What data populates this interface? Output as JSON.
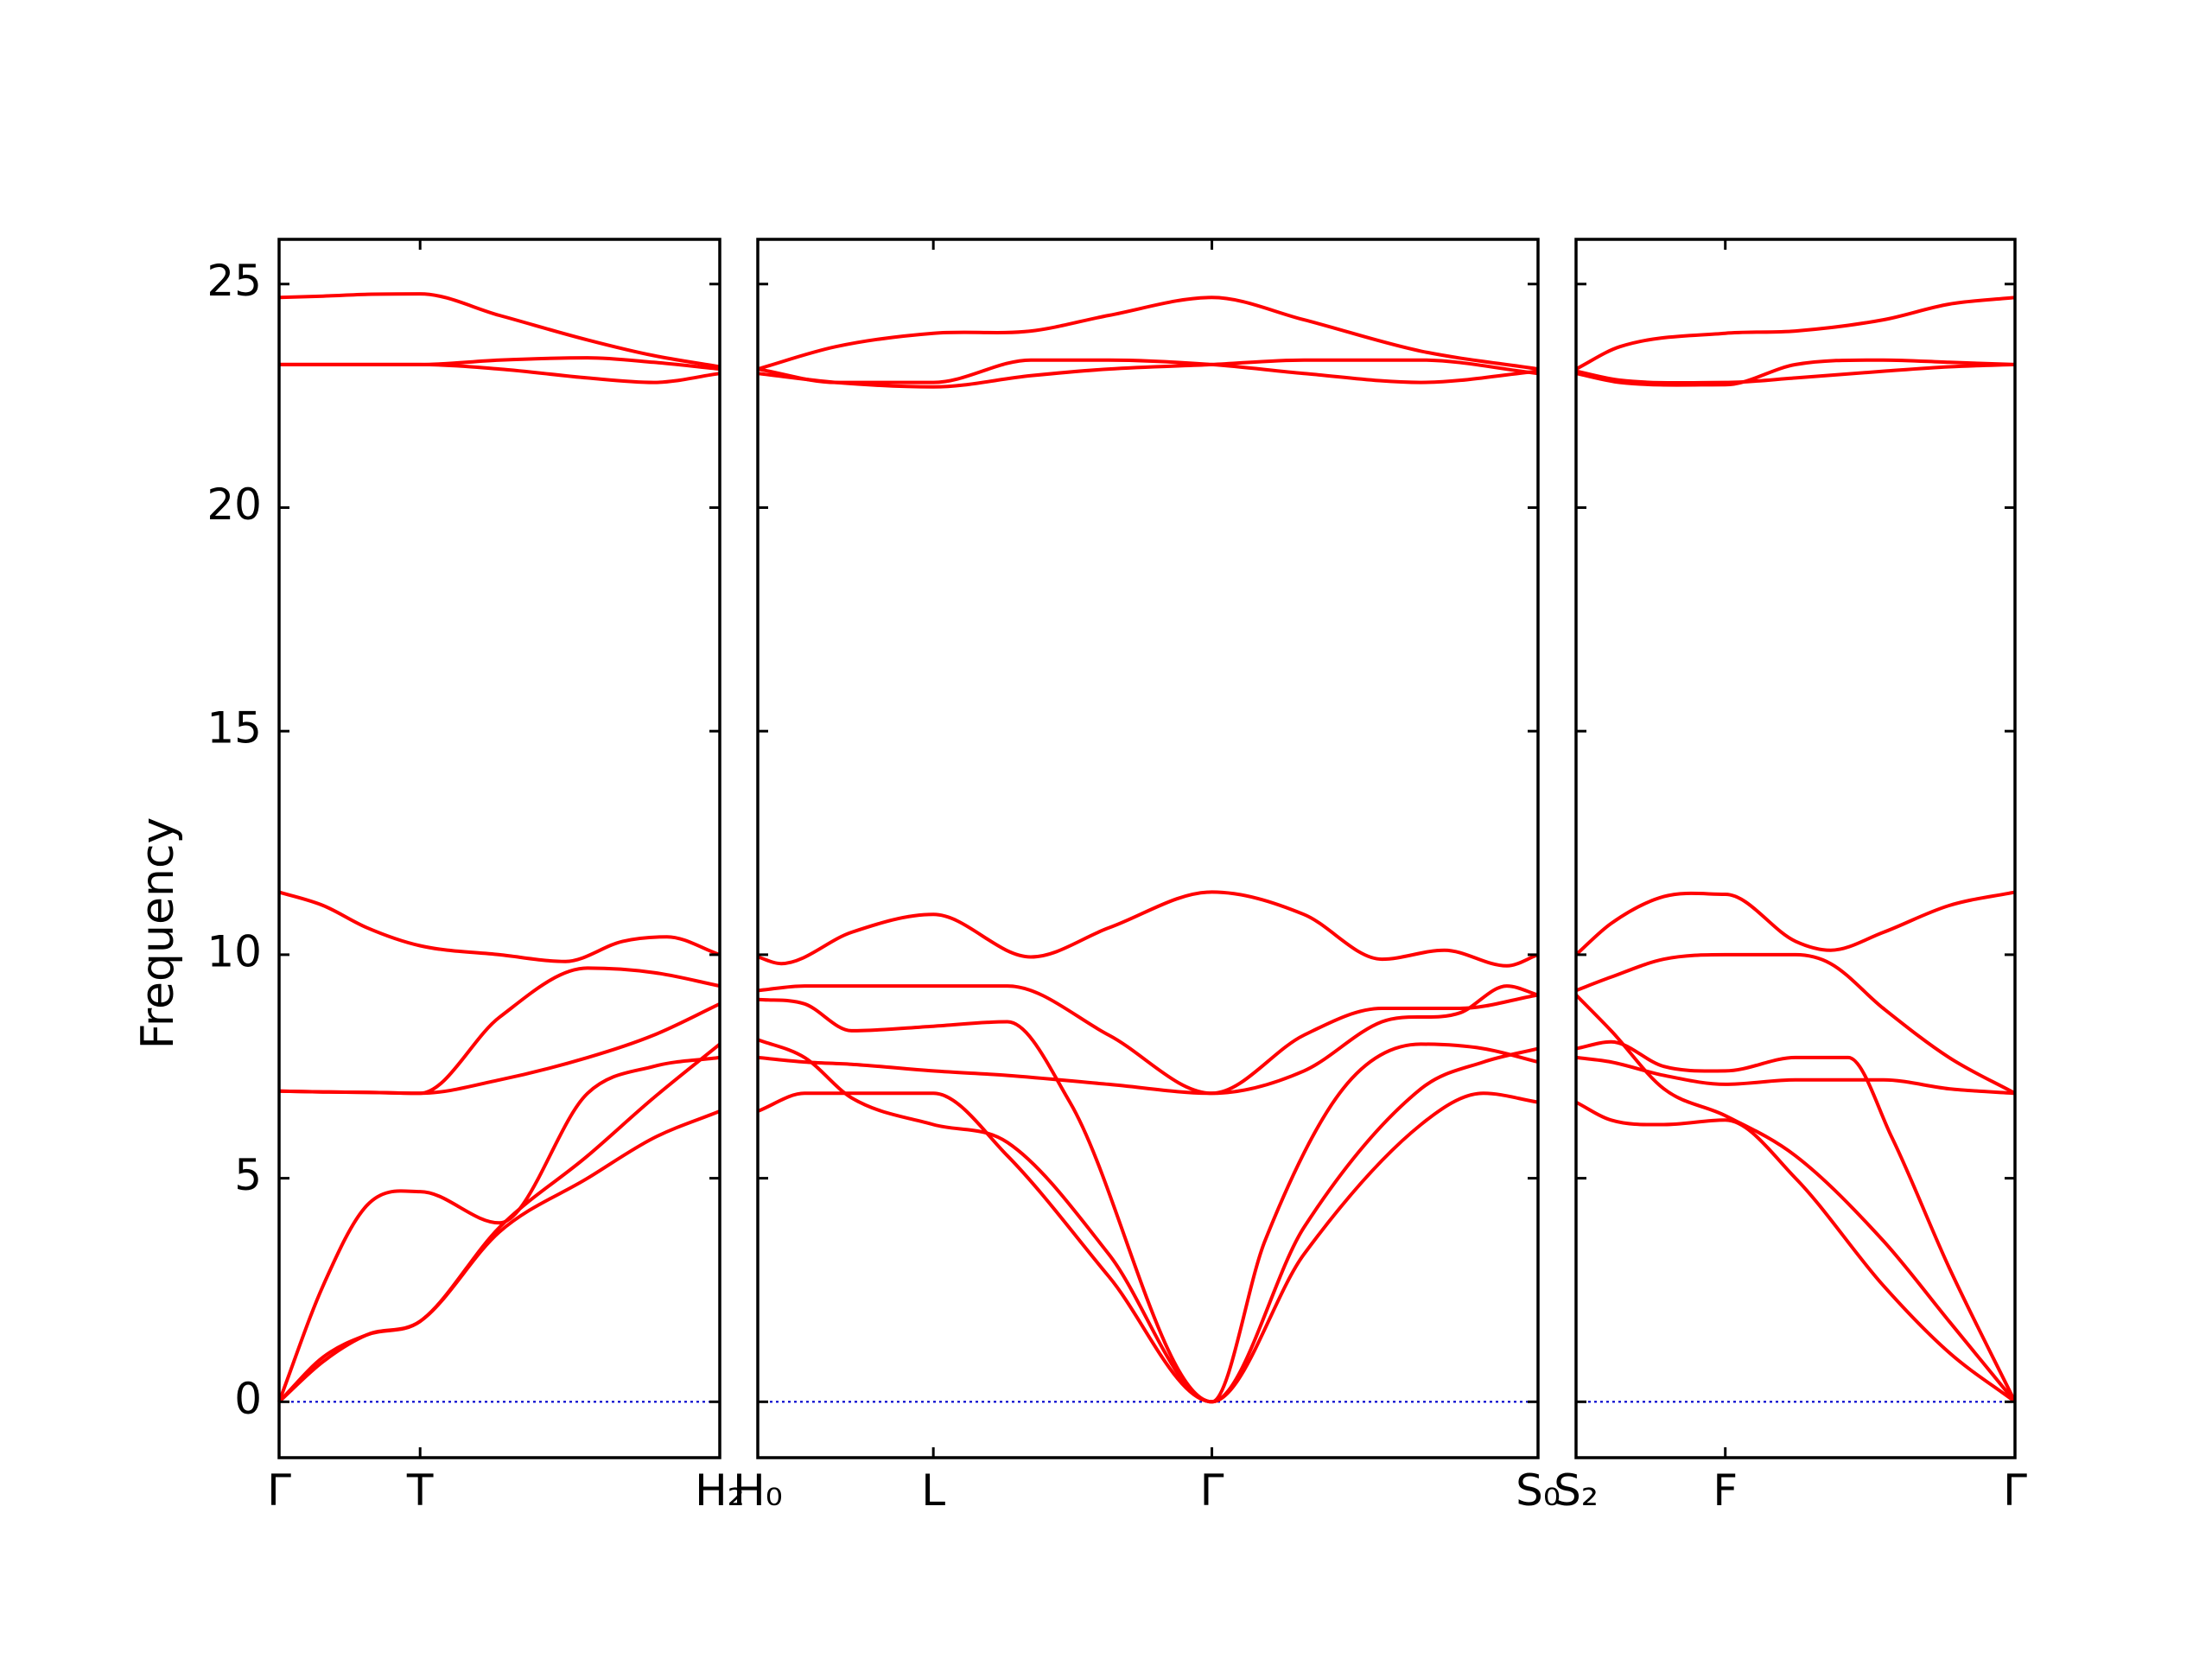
{
  "chart_data": {
    "type": "line",
    "title": "",
    "xlabel": "",
    "ylabel": "Frequency",
    "ylim": [
      -1.25,
      26
    ],
    "yticks": [
      0,
      5,
      10,
      15,
      20,
      25
    ],
    "grid": false,
    "colors": {
      "bands": "#ff0000",
      "zero_line": "#0000cc",
      "axes": "#000000"
    },
    "panels": [
      {
        "x_range": [
          0,
          1
        ],
        "ticks": [
          {
            "x": 0,
            "label": "Γ"
          },
          {
            "x": 0.32,
            "label": "T"
          },
          {
            "x": 1,
            "label": "H₂"
          }
        ],
        "bands": [
          {
            "x": [
              0,
              0.1,
              0.2,
              0.32,
              0.5,
              0.7,
              0.85,
              1
            ],
            "y": [
              0,
              1.0,
              1.5,
              1.8,
              3.9,
              5.5,
              6.8,
              8.0
            ]
          },
          {
            "x": [
              0,
              0.1,
              0.2,
              0.32,
              0.5,
              0.7,
              0.85,
              1
            ],
            "y": [
              0,
              2.6,
              4.4,
              4.7,
              4.0,
              6.9,
              7.5,
              7.7
            ]
          },
          {
            "x": [
              0,
              0.1,
              0.2,
              0.32,
              0.5,
              0.7,
              0.85,
              1
            ],
            "y": [
              0,
              0.9,
              1.5,
              1.8,
              3.8,
              5.0,
              5.9,
              6.5
            ]
          },
          {
            "x": [
              0,
              0.1,
              0.2,
              0.32,
              0.5,
              0.7,
              0.85,
              1
            ],
            "y": [
              6.95,
              6.93,
              6.92,
              6.9,
              7.2,
              7.7,
              8.2,
              8.9
            ]
          },
          {
            "x": [
              0,
              0.1,
              0.2,
              0.32,
              0.5,
              0.7,
              0.85,
              1
            ],
            "y": [
              6.95,
              6.93,
              6.92,
              6.9,
              8.6,
              9.7,
              9.6,
              9.3
            ]
          },
          {
            "x": [
              0,
              0.1,
              0.2,
              0.32,
              0.5,
              0.65,
              0.78,
              0.88,
              1
            ],
            "y": [
              11.4,
              11.1,
              10.6,
              10.2,
              10.0,
              9.85,
              10.3,
              10.4,
              10.0
            ]
          },
          {
            "x": [
              0,
              0.1,
              0.2,
              0.32,
              0.5,
              0.7,
              0.85,
              1
            ],
            "y": [
              23.2,
              23.2,
              23.2,
              23.2,
              23.3,
              23.35,
              23.25,
              23.1
            ]
          },
          {
            "x": [
              0,
              0.1,
              0.2,
              0.32,
              0.5,
              0.7,
              0.85,
              1
            ],
            "y": [
              23.2,
              23.2,
              23.2,
              23.2,
              23.1,
              22.9,
              22.8,
              23.0
            ]
          },
          {
            "x": [
              0,
              0.1,
              0.2,
              0.32,
              0.5,
              0.7,
              0.85,
              1
            ],
            "y": [
              24.7,
              24.73,
              24.77,
              24.78,
              24.3,
              23.75,
              23.4,
              23.15
            ]
          }
        ]
      },
      {
        "x_range": [
          0,
          1
        ],
        "ticks": [
          {
            "x": 0,
            "label": "H₀"
          },
          {
            "x": 0.225,
            "label": "L"
          },
          {
            "x": 0.582,
            "label": "Γ"
          },
          {
            "x": 1,
            "label": "S₀"
          }
        ],
        "bands": [
          {
            "x": [
              0,
              0.06,
              0.12,
              0.225,
              0.32,
              0.45,
              0.582,
              0.7,
              0.85,
              0.93,
              1
            ],
            "y": [
              6.5,
              6.9,
              6.9,
              6.9,
              5.5,
              2.8,
              0,
              3.3,
              6.2,
              6.9,
              6.7
            ]
          },
          {
            "x": [
              0,
              0.06,
              0.12,
              0.225,
              0.32,
              0.45,
              0.582,
              0.7,
              0.85,
              0.93,
              1
            ],
            "y": [
              8.1,
              7.7,
              6.8,
              6.2,
              5.8,
              3.3,
              0,
              3.9,
              7.0,
              7.6,
              7.9
            ]
          },
          {
            "x": [
              0,
              0.06,
              0.12,
              0.225,
              0.32,
              0.4,
              0.582,
              0.65,
              0.75,
              0.85,
              0.93,
              1
            ],
            "y": [
              9.0,
              8.9,
              8.3,
              8.4,
              8.5,
              6.7,
              0,
              3.6,
              7.0,
              8.0,
              7.9,
              7.6
            ]
          },
          {
            "x": [
              0,
              0.06,
              0.12,
              0.225,
              0.32,
              0.45,
              0.582,
              0.7,
              0.8,
              0.9,
              0.96,
              1
            ],
            "y": [
              7.7,
              7.6,
              7.55,
              7.4,
              7.3,
              7.1,
              6.9,
              7.4,
              8.5,
              8.7,
              9.3,
              9.1
            ]
          },
          {
            "x": [
              0,
              0.06,
              0.12,
              0.225,
              0.32,
              0.45,
              0.582,
              0.7,
              0.8,
              0.9,
              1
            ],
            "y": [
              9.2,
              9.3,
              9.3,
              9.3,
              9.3,
              8.2,
              6.9,
              8.2,
              8.8,
              8.8,
              9.1
            ]
          },
          {
            "x": [
              0,
              0.03,
              0.12,
              0.225,
              0.35,
              0.45,
              0.582,
              0.7,
              0.8,
              0.88,
              0.96,
              1
            ],
            "y": [
              9.95,
              9.8,
              10.5,
              10.9,
              9.95,
              10.6,
              11.4,
              10.9,
              9.9,
              10.1,
              9.75,
              10.0
            ]
          },
          {
            "x": [
              0,
              0.1,
              0.225,
              0.35,
              0.45,
              0.582,
              0.7,
              0.85,
              1
            ],
            "y": [
              23.0,
              22.8,
              22.7,
              22.95,
              23.1,
              23.2,
              23.3,
              23.3,
              23.0
            ]
          },
          {
            "x": [
              0,
              0.1,
              0.225,
              0.35,
              0.45,
              0.582,
              0.7,
              0.85,
              1
            ],
            "y": [
              23.1,
              22.8,
              22.8,
              23.3,
              23.3,
              23.2,
              23.0,
              22.8,
              23.05
            ]
          },
          {
            "x": [
              0,
              0.1,
              0.225,
              0.35,
              0.45,
              0.582,
              0.7,
              0.85,
              1
            ],
            "y": [
              23.1,
              23.6,
              23.9,
              23.95,
              24.3,
              24.7,
              24.2,
              23.5,
              23.1
            ]
          }
        ]
      },
      {
        "x_range": [
          0,
          1
        ],
        "ticks": [
          {
            "x": 0,
            "label": "S₂"
          },
          {
            "x": 0.34,
            "label": "F"
          },
          {
            "x": 1,
            "label": "Γ"
          }
        ],
        "bands": [
          {
            "x": [
              0,
              0.08,
              0.2,
              0.34,
              0.5,
              0.7,
              0.85,
              1
            ],
            "y": [
              6.7,
              6.3,
              6.2,
              6.3,
              5.0,
              2.6,
              1.1,
              0
            ]
          },
          {
            "x": [
              0,
              0.08,
              0.2,
              0.34,
              0.5,
              0.7,
              0.85,
              1
            ],
            "y": [
              9.1,
              8.3,
              7.0,
              6.4,
              5.5,
              3.6,
              1.8,
              0
            ]
          },
          {
            "x": [
              0,
              0.08,
              0.2,
              0.34,
              0.5,
              0.62,
              0.72,
              0.85,
              1
            ],
            "y": [
              7.9,
              8.05,
              7.5,
              7.4,
              7.7,
              7.7,
              5.9,
              3.0,
              0
            ]
          },
          {
            "x": [
              0,
              0.08,
              0.2,
              0.34,
              0.5,
              0.7,
              0.85,
              1
            ],
            "y": [
              7.7,
              7.6,
              7.3,
              7.1,
              7.2,
              7.2,
              7.0,
              6.9
            ]
          },
          {
            "x": [
              0,
              0.08,
              0.2,
              0.34,
              0.5,
              0.58,
              0.7,
              0.85,
              1
            ],
            "y": [
              9.2,
              9.5,
              9.9,
              10.0,
              10.0,
              9.8,
              8.8,
              7.7,
              6.9
            ]
          },
          {
            "x": [
              0,
              0.08,
              0.2,
              0.34,
              0.5,
              0.58,
              0.7,
              0.85,
              1
            ],
            "y": [
              10.0,
              10.7,
              11.3,
              11.35,
              10.3,
              10.1,
              10.5,
              11.1,
              11.4
            ]
          },
          {
            "x": [
              0,
              0.1,
              0.34,
              0.5,
              0.7,
              0.85,
              1
            ],
            "y": [
              23.0,
              22.8,
              22.75,
              23.2,
              23.3,
              23.25,
              23.2
            ]
          },
          {
            "x": [
              0,
              0.1,
              0.34,
              0.5,
              0.7,
              0.85,
              1
            ],
            "y": [
              23.05,
              22.85,
              22.8,
              22.9,
              23.05,
              23.15,
              23.2
            ]
          },
          {
            "x": [
              0,
              0.1,
              0.34,
              0.5,
              0.7,
              0.85,
              1
            ],
            "y": [
              23.1,
              23.6,
              23.9,
              23.95,
              24.2,
              24.55,
              24.7
            ]
          }
        ]
      }
    ]
  }
}
